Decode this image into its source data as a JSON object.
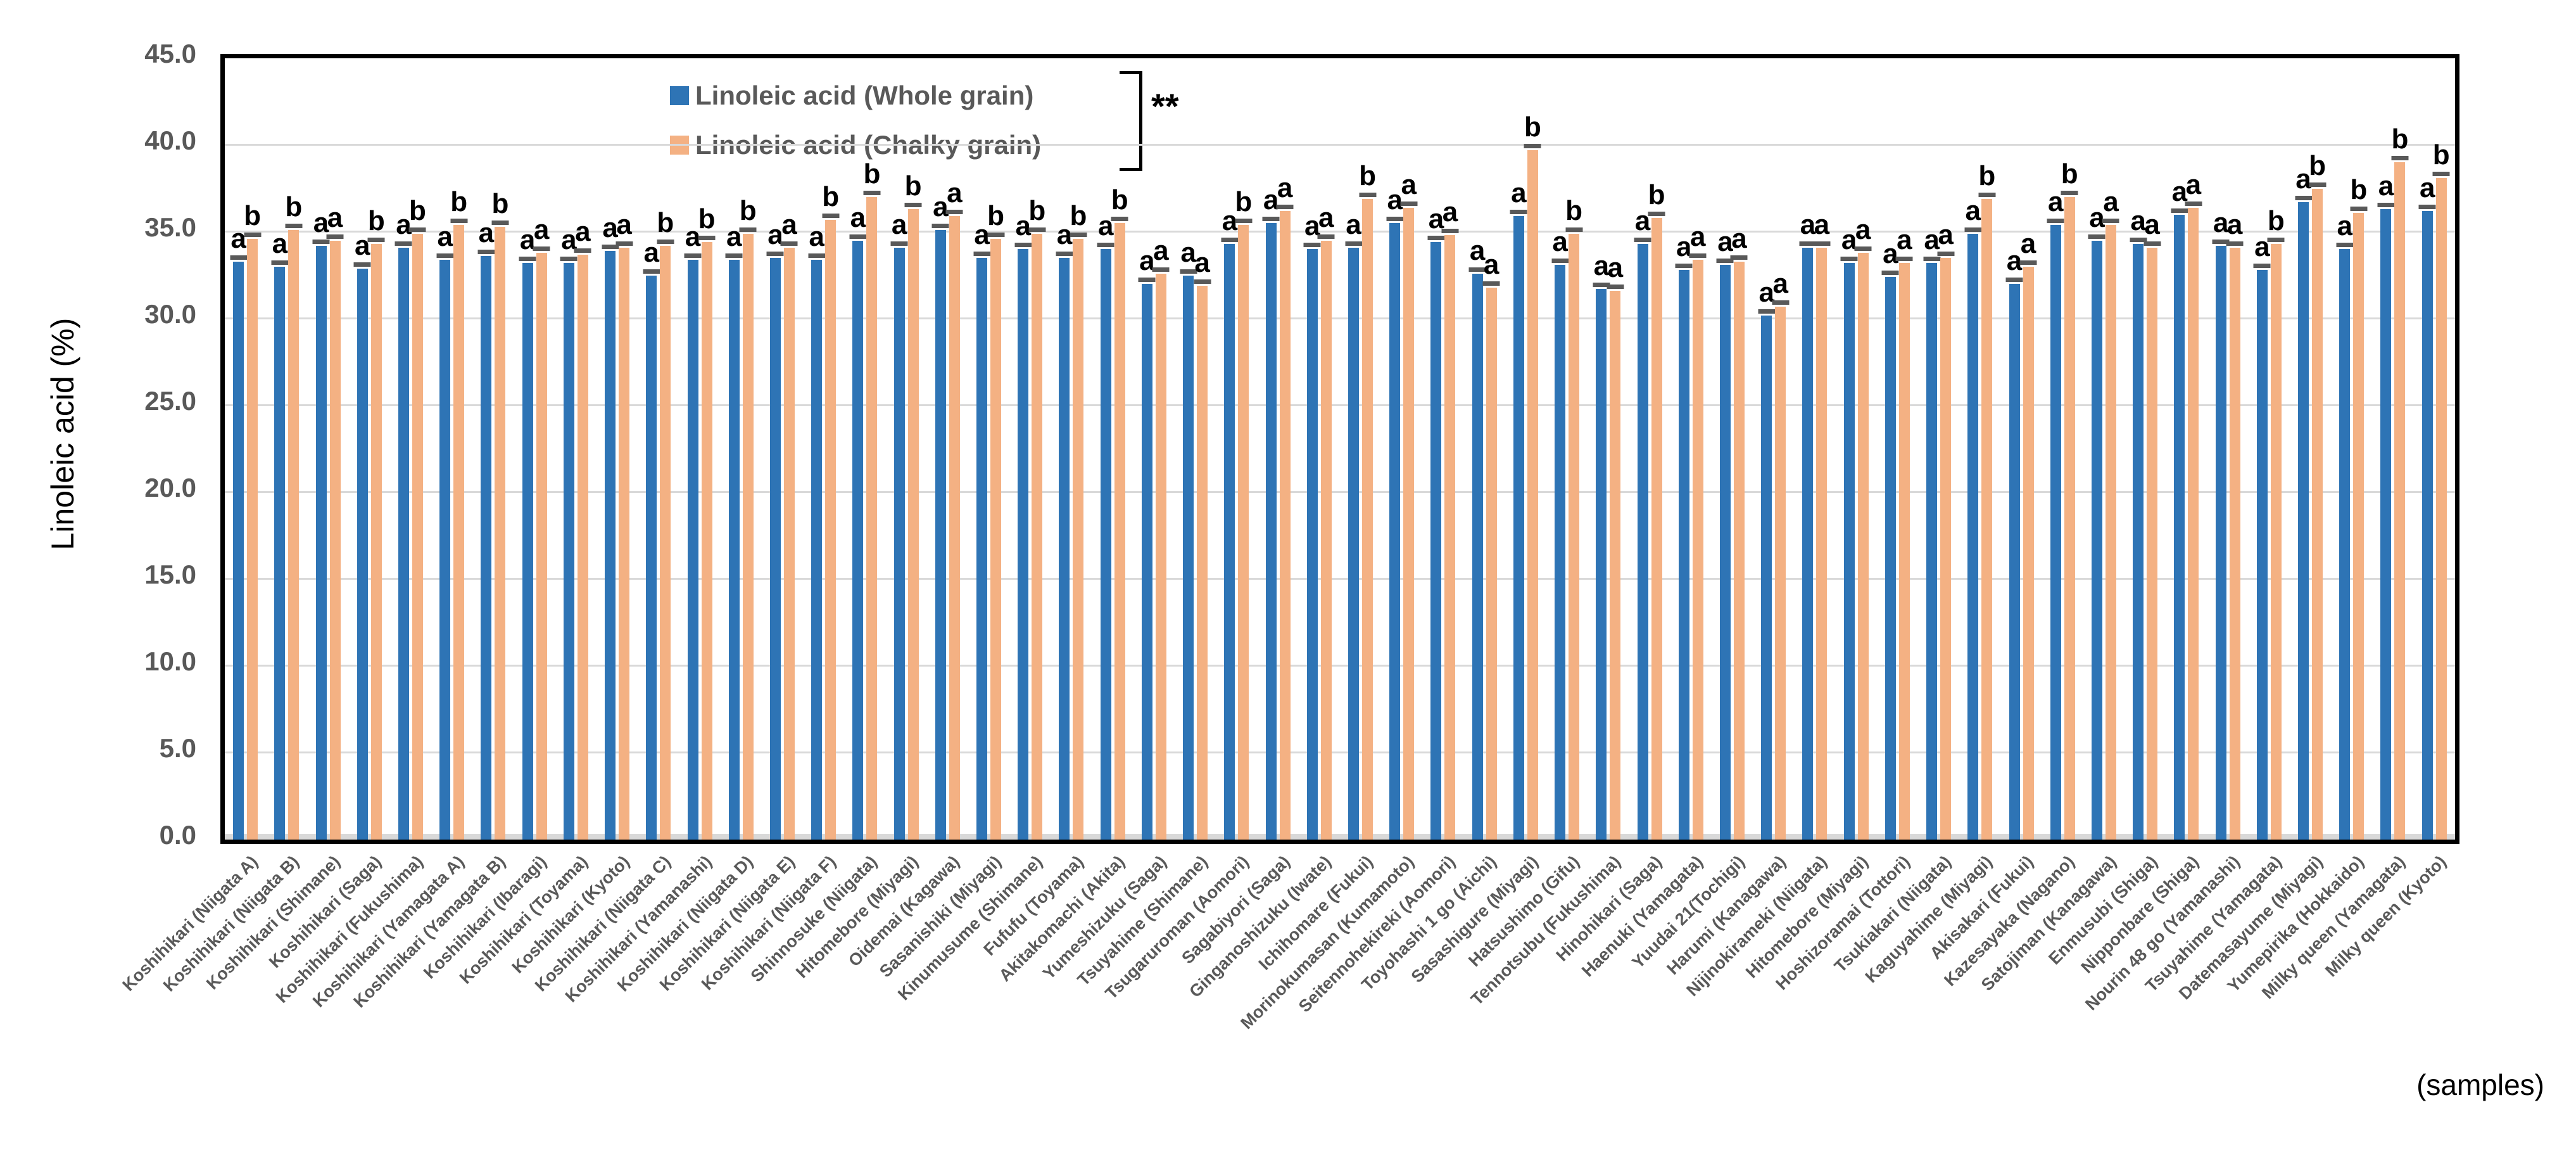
{
  "chart_data": {
    "type": "bar",
    "title": "",
    "ylabel": "Linoleic acid (%)",
    "xlabel": "(samples)",
    "ylim": [
      0,
      45
    ],
    "ytick_step": 5,
    "ytick_labels": [
      "0.0",
      "5.0",
      "10.0",
      "15.0",
      "20.0",
      "25.0",
      "30.0",
      "35.0",
      "40.0",
      "45.0"
    ],
    "grid": true,
    "legend_position": "top-center",
    "significance": "**",
    "error_caps_shown": true,
    "error_cap_color": "#595959",
    "categories": [
      "Koshihikari (Niigata A)",
      "Koshihikari (Niigata B)",
      "Koshihikari (Shimane)",
      "Koshihikari (Saga)",
      "Koshihikari (Fukushima)",
      "Koshihikari (Yamagata A)",
      "Koshihikari (Yamagata B)",
      "Koshihikari (Ibaragi)",
      "Koshihikari (Toyama)",
      "Koshihikari (Kyoto)",
      "Koshihikari (Niigata C)",
      "Koshihikari (Yamanashi)",
      "Koshihikari (Niigata D)",
      "Koshihikari (Niigata E)",
      "Koshihikari (Niigata F)",
      "Shinnosuke (Niigata)",
      "Hitomebore (Miyagi)",
      "Oidemai (Kagawa)",
      "Sasanishiki (Miyagi)",
      "Kinumusume (Shimane)",
      "Fufufu (Toyama)",
      "Akitakomachi (Akita)",
      "Yumeshizuku (Saga)",
      "Tsuyahime (Shimane)",
      "Tsugaruroman (Aomori)",
      "Sagabiyori (Saga)",
      "Ginganoshizuku (Iwate)",
      "Ichihomare (Fukui)",
      "Morinokumasan (Kumamoto)",
      "Seitennohekireki (Aomori)",
      "Toyohashi 1 go (Aichi)",
      "Sasashigure (Miyagi)",
      "Hatsushimo (Gifu)",
      "Tennotsubu (Fukushima)",
      "Hinohikari (Saga)",
      "Haenuki (Yamagata)",
      "Yuudai 21(Tochigi)",
      "Harumi (Kanagawa)",
      "Nijinokirameki (Niigata)",
      "Hitomebore (Miyagi)",
      "Hoshizoramai (Tottori)",
      "Tsukiakari (Niigata)",
      "Kaguyahime (Miyagi)",
      "Akisakari (Fukui)",
      "Kazesayaka (Nagano)",
      "Satojiman (Kanagawa)",
      "Enmusubi (Shiga)",
      "Nipponbare (Shiga)",
      "Nourin 48 go (Yamanashi)",
      "Tsuyahime (Yamagata)",
      "Datemasayume (Miyagi)",
      "Yumepirika (Hokkaido)",
      "Milky queen (Yamagata)",
      "Milky queen (Kyoto)"
    ],
    "series": [
      {
        "name": "Linoleic acid (Whole grain)",
        "color": "#2E74B5",
        "values": [
          33.3,
          33.0,
          34.2,
          32.9,
          34.1,
          33.4,
          33.6,
          33.2,
          33.2,
          33.9,
          32.5,
          33.4,
          33.4,
          33.5,
          33.4,
          34.5,
          34.1,
          35.1,
          33.5,
          34.0,
          33.5,
          34.0,
          32.0,
          32.5,
          34.3,
          35.5,
          34.0,
          34.1,
          35.5,
          34.4,
          32.6,
          35.9,
          33.1,
          31.7,
          34.3,
          32.8,
          33.1,
          30.2,
          34.1,
          33.2,
          32.4,
          33.2,
          34.9,
          32.0,
          35.4,
          34.5,
          34.3,
          36.0,
          34.2,
          32.8,
          36.7,
          34.0,
          36.3,
          36.2
        ],
        "letters": [
          "a",
          "a",
          "a",
          "a",
          "a",
          "a",
          "a",
          "a",
          "a",
          "a",
          "a",
          "a",
          "a",
          "a",
          "a",
          "a",
          "a",
          "a",
          "a",
          "a",
          "a",
          "a",
          "a",
          "a",
          "a",
          "a",
          "a",
          "a",
          "a",
          "a",
          "a",
          "a",
          "a",
          "a",
          "a",
          "a",
          "a",
          "a",
          "a",
          "a",
          "a",
          "a",
          "a",
          "a",
          "a",
          "a",
          "a",
          "a",
          "a",
          "a",
          "a",
          "a",
          "a",
          "a"
        ]
      },
      {
        "name": "Linoleic acid (Chalky grain)",
        "color": "#F4B183",
        "values": [
          34.6,
          35.1,
          34.5,
          34.3,
          34.9,
          35.4,
          35.3,
          33.8,
          33.7,
          34.1,
          34.2,
          34.4,
          34.9,
          34.1,
          35.7,
          37.0,
          36.3,
          35.9,
          34.6,
          34.9,
          34.6,
          35.5,
          32.6,
          31.9,
          35.4,
          36.2,
          34.5,
          36.9,
          36.4,
          34.8,
          31.8,
          39.7,
          34.9,
          31.6,
          35.8,
          33.4,
          33.3,
          30.7,
          34.1,
          33.8,
          33.2,
          33.5,
          36.9,
          33.0,
          37.0,
          35.4,
          34.1,
          36.4,
          34.1,
          34.3,
          37.5,
          36.1,
          39.0,
          38.1
        ],
        "letters": [
          "b",
          "b",
          "a",
          "b",
          "b",
          "b",
          "b",
          "a",
          "a",
          "a",
          "b",
          "b",
          "b",
          "a",
          "b",
          "b",
          "b",
          "a",
          "b",
          "b",
          "b",
          "b",
          "a",
          "a",
          "b",
          "a",
          "a",
          "b",
          "a",
          "a",
          "a",
          "b",
          "b",
          "a",
          "b",
          "a",
          "a",
          "a",
          "a",
          "a",
          "a",
          "a",
          "b",
          "a",
          "b",
          "a",
          "a",
          "a",
          "a",
          "b",
          "b",
          "b",
          "b",
          "b"
        ]
      }
    ]
  },
  "colors": {
    "grid": "#D9D9D9",
    "axis_band": "#D9D9D9",
    "tick_text": "#595959",
    "label_text": "#595959",
    "letter_text": "#000000",
    "plot_border": "#000000"
  }
}
